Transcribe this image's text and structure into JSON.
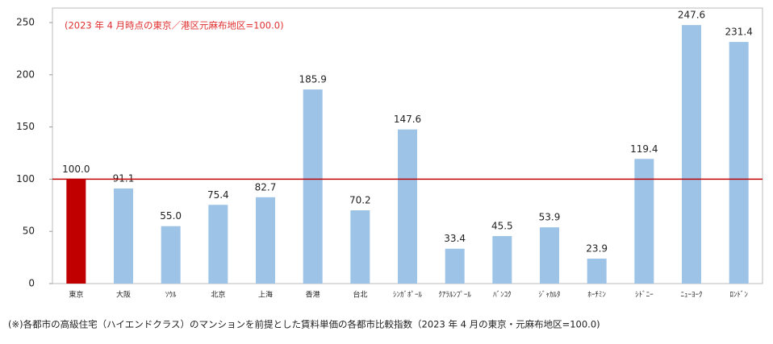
{
  "chart_data": {
    "type": "bar",
    "annotation": "(2023 年 4 月時点の東京／港区元麻布地区=100.0)",
    "footnote": "(※)各都市の高級住宅（ハイエンドクラス）のマンションを前提とした賃料単価の各都市比較指数（2023 年 4 月の東京・元麻布地区=100.0)",
    "categories": [
      "東京",
      "大阪",
      "ｿｳﾙ",
      "北京",
      "上海",
      "香港",
      "台北",
      "ｼﾝｶﾞﾎﾟｰﾙ",
      "ｸｱﾗﾙﾝﾌﾟｰﾙ",
      "ﾊﾞﾝｺｸ",
      "ｼﾞｬｶﾙﾀ",
      "ﾎｰﾁﾐﾝ",
      "ｼﾄﾞﾆｰ",
      "ﾆｭｰﾖｰｸ",
      "ﾛﾝﾄﾞﾝ"
    ],
    "values": [
      100.0,
      91.1,
      55.0,
      75.4,
      82.7,
      185.9,
      70.2,
      147.6,
      33.4,
      45.5,
      53.9,
      23.9,
      119.4,
      247.6,
      231.4
    ],
    "value_labels": [
      "100.0",
      "91.1",
      "55.0",
      "75.4",
      "82.7",
      "185.9",
      "70.2",
      "147.6",
      "33.4",
      "45.5",
      "53.9",
      "23.9",
      "119.4",
      "247.6",
      "231.4"
    ],
    "colors": [
      "#c00000",
      "#9dc3e6",
      "#9dc3e6",
      "#9dc3e6",
      "#9dc3e6",
      "#9dc3e6",
      "#9dc3e6",
      "#9dc3e6",
      "#9dc3e6",
      "#9dc3e6",
      "#9dc3e6",
      "#9dc3e6",
      "#9dc3e6",
      "#9dc3e6",
      "#9dc3e6"
    ],
    "reference_line": 100,
    "reference_color": "#c00000",
    "ylim": [
      0,
      250
    ],
    "yticks": [
      0,
      50,
      100,
      150,
      200,
      250
    ]
  }
}
